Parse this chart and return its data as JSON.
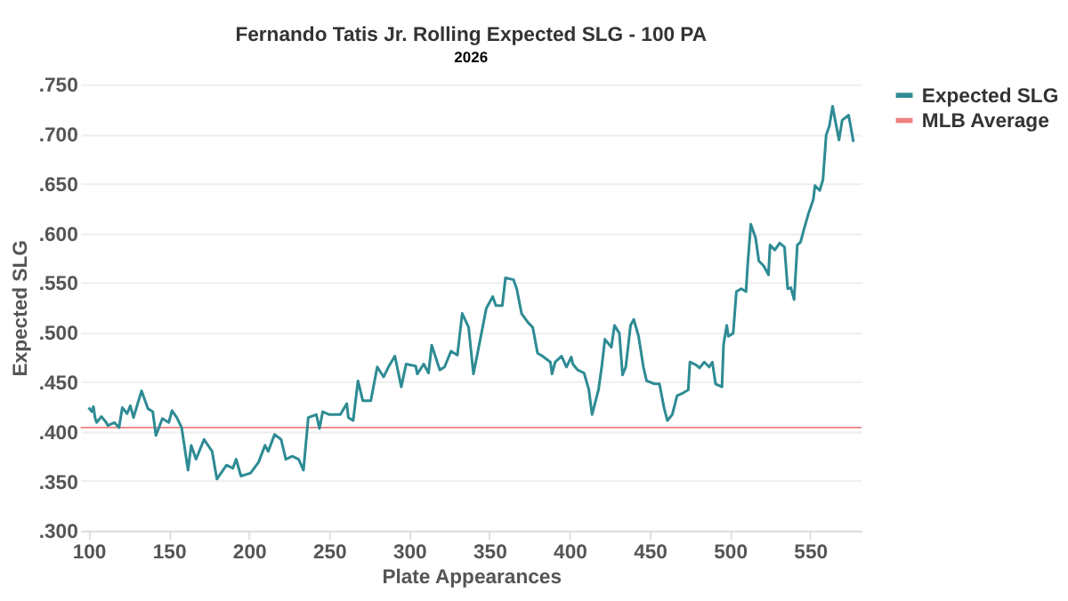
{
  "chart_data": {
    "type": "line",
    "title": "Fernando Tatis Jr. Rolling Expected SLG - 100 PA",
    "subtitle": "2026",
    "xlabel": "Plate Appearances",
    "ylabel": "Expected SLG",
    "xlim": [
      95,
      582
    ],
    "xticks": [
      100,
      150,
      200,
      250,
      300,
      350,
      400,
      450,
      500,
      550
    ],
    "ylim": [
      0.3,
      0.75
    ],
    "yticks": [
      {
        "value": 0.3,
        "label": ".300"
      },
      {
        "value": 0.35,
        "label": ".350"
      },
      {
        "value": 0.4,
        "label": ".400"
      },
      {
        "value": 0.45,
        "label": ".450"
      },
      {
        "value": 0.5,
        "label": ".500"
      },
      {
        "value": 0.55,
        "label": ".550"
      },
      {
        "value": 0.6,
        "label": ".600"
      },
      {
        "value": 0.65,
        "label": ".650"
      },
      {
        "value": 0.7,
        "label": ".700"
      },
      {
        "value": 0.75,
        "label": ".750"
      }
    ],
    "grid": "y",
    "legend": "right",
    "line_style": "solid",
    "series": [
      {
        "name": "Expected SLG",
        "color": "#2e8b94",
        "x": [
          100,
          102,
          103,
          104,
          105,
          108,
          111,
          112,
          116,
          119,
          121,
          124,
          126,
          128,
          133,
          137,
          140,
          142,
          146,
          150,
          152,
          155,
          158,
          162,
          164,
          167,
          172,
          177,
          180,
          186,
          190,
          192,
          195,
          201,
          206,
          210,
          212,
          216,
          220,
          223,
          227,
          231,
          234,
          237,
          242,
          244,
          246,
          250,
          257,
          261,
          262,
          265,
          268,
          271,
          276,
          280,
          284,
          287,
          291,
          295,
          298,
          304,
          305,
          309,
          312,
          314,
          319,
          322,
          326,
          330,
          333,
          337,
          340,
          345,
          348,
          352,
          354,
          358,
          360,
          365,
          367,
          370,
          374,
          377,
          380,
          383,
          388,
          389,
          391,
          395,
          398,
          401,
          402,
          405,
          409,
          412,
          414,
          418,
          420,
          422,
          426,
          428,
          431,
          433,
          435,
          438,
          440,
          443,
          446,
          448,
          453,
          456,
          459,
          461,
          464,
          467,
          471,
          474,
          475,
          479,
          481,
          484,
          487,
          489,
          491,
          495,
          496,
          498,
          499,
          502,
          504,
          507,
          510,
          511,
          513,
          516,
          518,
          521,
          524,
          525,
          528,
          531,
          534,
          536,
          538,
          540,
          542,
          544,
          546,
          549,
          552,
          553,
          556,
          558,
          560,
          562,
          564,
          565,
          568,
          570,
          574,
          577
        ],
        "values": [
          0.424,
          0.42,
          0.425,
          0.414,
          0.409,
          0.415,
          0.409,
          0.406,
          0.409,
          0.404,
          0.424,
          0.418,
          0.426,
          0.414,
          0.441,
          0.423,
          0.42,
          0.396,
          0.413,
          0.409,
          0.421,
          0.414,
          0.404,
          0.361,
          0.386,
          0.372,
          0.392,
          0.38,
          0.352,
          0.366,
          0.363,
          0.372,
          0.355,
          0.358,
          0.369,
          0.386,
          0.38,
          0.397,
          0.392,
          0.372,
          0.375,
          0.372,
          0.361,
          0.414,
          0.417,
          0.403,
          0.42,
          0.417,
          0.417,
          0.428,
          0.414,
          0.411,
          0.451,
          0.431,
          0.431,
          0.465,
          0.455,
          0.465,
          0.476,
          0.445,
          0.468,
          0.466,
          0.458,
          0.468,
          0.459,
          0.487,
          0.462,
          0.465,
          0.481,
          0.477,
          0.519,
          0.505,
          0.458,
          0.499,
          0.524,
          0.536,
          0.527,
          0.527,
          0.555,
          0.553,
          0.544,
          0.519,
          0.51,
          0.505,
          0.479,
          0.476,
          0.47,
          0.458,
          0.47,
          0.476,
          0.465,
          0.475,
          0.468,
          0.462,
          0.459,
          0.442,
          0.417,
          0.442,
          0.465,
          0.493,
          0.485,
          0.507,
          0.499,
          0.457,
          0.465,
          0.507,
          0.513,
          0.496,
          0.465,
          0.451,
          0.448,
          0.448,
          0.423,
          0.411,
          0.417,
          0.436,
          0.439,
          0.442,
          0.47,
          0.467,
          0.464,
          0.47,
          0.465,
          0.47,
          0.448,
          0.445,
          0.488,
          0.507,
          0.496,
          0.499,
          0.541,
          0.544,
          0.541,
          0.567,
          0.609,
          0.595,
          0.572,
          0.567,
          0.558,
          0.588,
          0.583,
          0.59,
          0.586,
          0.544,
          0.545,
          0.533,
          0.588,
          0.591,
          0.603,
          0.62,
          0.634,
          0.648,
          0.643,
          0.654,
          0.699,
          0.708,
          0.728,
          0.719,
          0.694,
          0.714,
          0.719,
          0.692
        ]
      },
      {
        "name": "MLB Average",
        "color": "#f08080",
        "type": "line",
        "x": [
          95,
          582
        ],
        "values": [
          0.404,
          0.404
        ]
      }
    ]
  }
}
